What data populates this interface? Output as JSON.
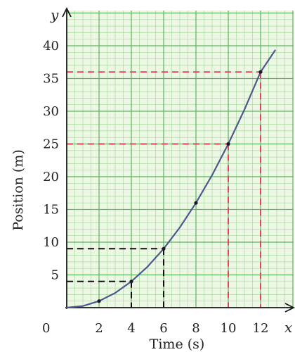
{
  "chart_data": {
    "type": "line",
    "xlabel": "Time (s)",
    "ylabel": "Position (m)",
    "x_axis_letter": "x",
    "y_axis_letter": "y",
    "origin_label": "0",
    "xlim": [
      0,
      13.5
    ],
    "ylim": [
      0,
      42
    ],
    "x_ticks": [
      2,
      4,
      6,
      8,
      10,
      12
    ],
    "y_ticks": [
      5,
      10,
      15,
      20,
      25,
      30,
      35,
      40
    ],
    "grid": true,
    "series": [
      {
        "x": [
          0,
          1,
          2,
          3,
          4,
          5,
          6,
          7,
          8,
          9,
          10,
          11,
          12,
          12.9
        ],
        "y": [
          0,
          0.25,
          1,
          2.25,
          4,
          6.25,
          9,
          12.25,
          16,
          20.25,
          25,
          30.25,
          36,
          39.3
        ]
      }
    ],
    "marked_points": [
      {
        "x": 2,
        "y": 1
      },
      {
        "x": 4,
        "y": 4
      },
      {
        "x": 6,
        "y": 9
      },
      {
        "x": 8,
        "y": 16
      },
      {
        "x": 10,
        "y": 25
      },
      {
        "x": 12,
        "y": 36
      }
    ],
    "reference_lines": [
      {
        "x": 4,
        "y": 4,
        "color": "#111111"
      },
      {
        "x": 6,
        "y": 9,
        "color": "#111111"
      },
      {
        "x": 10,
        "y": 25,
        "color": "#e0455a"
      },
      {
        "x": 12,
        "y": 36,
        "color": "#e0455a"
      }
    ],
    "colors": {
      "curve": "#4a5a8c",
      "grid_major": "#5fb35f",
      "grid_minor": "#a8d8a0",
      "background": "#edf8e4",
      "axis": "#1a1a1a"
    }
  }
}
